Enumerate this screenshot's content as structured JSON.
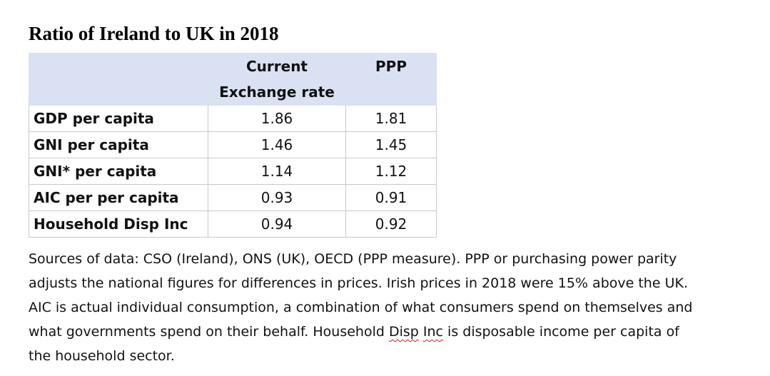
{
  "title": "Ratio of Ireland to UK in 2018",
  "table": {
    "headers": {
      "label": "",
      "exchange_line1": "Current",
      "exchange_line2": "Exchange rate",
      "ppp": "PPP"
    },
    "rows": [
      {
        "label": "GDP per capita",
        "exchange": "1.86",
        "ppp": "1.81"
      },
      {
        "label": "GNI per capita",
        "exchange": "1.46",
        "ppp": "1.45"
      },
      {
        "label": "GNI* per capita",
        "exchange": "1.14",
        "ppp": "1.12"
      },
      {
        "label": "AIC per per capita",
        "exchange": "0.93",
        "ppp": "0.91"
      },
      {
        "label": "Household Disp Inc",
        "exchange": "0.94",
        "ppp": "0.92"
      }
    ],
    "header_color": "#d9e1f2"
  },
  "sources": {
    "line1": "Sources of data: CSO (Ireland), ONS (UK), OECD (PPP measure). PPP or purchasing power parity",
    "line2": "adjusts the national figures for differences in prices. Irish prices in 2018 were 15% above the UK.",
    "line3": "AIC is actual individual consumption, a combination of what consumers spend on themselves and",
    "line4_a": "what governments spend on their behalf. Household ",
    "line4_b": "Disp",
    "line4_c": " ",
    "line4_d": "Inc",
    "line4_e": " is disposable income per capita of",
    "line5": "the household sector."
  }
}
